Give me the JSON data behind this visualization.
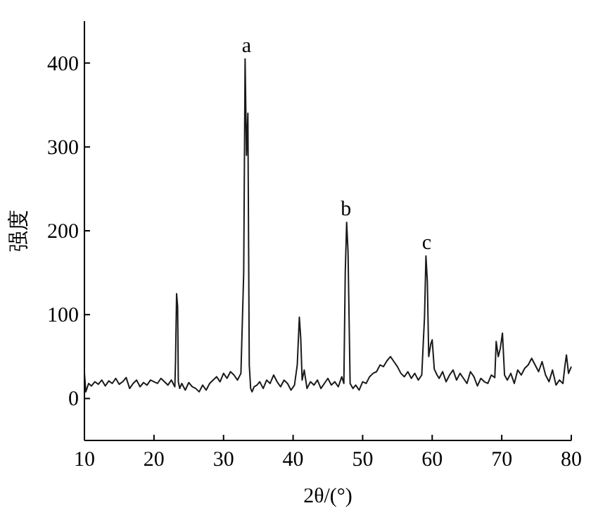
{
  "chart_data": {
    "type": "line",
    "xlabel": "2θ/(°)",
    "ylabel": "强度",
    "x": [
      10,
      10.2,
      10.6,
      11,
      11.5,
      12,
      12.5,
      13,
      13.5,
      14,
      14.5,
      15,
      15.5,
      16,
      16.5,
      17,
      17.5,
      18,
      18.5,
      19,
      19.5,
      20,
      20.5,
      21,
      21.5,
      22,
      22.5,
      23,
      23.1,
      23.25,
      23.4,
      23.5,
      23.7,
      24,
      24.5,
      25,
      25.5,
      26,
      26.5,
      27,
      27.5,
      28,
      28.5,
      29,
      29.5,
      30,
      30.5,
      31,
      31.5,
      32,
      32.5,
      32.9,
      33.1,
      33.3,
      33.5,
      33.7,
      33.9,
      34.1,
      34.4,
      34.8,
      35.2,
      35.7,
      36.2,
      36.7,
      37.2,
      37.7,
      38.2,
      38.7,
      39.2,
      39.7,
      40.2,
      40.6,
      40.9,
      41.1,
      41.3,
      41.6,
      42,
      42.5,
      43,
      43.5,
      44,
      44.5,
      45,
      45.5,
      46,
      46.5,
      47,
      47.3,
      47.5,
      47.7,
      47.9,
      48.2,
      48.6,
      49,
      49.5,
      50,
      50.5,
      51,
      51.5,
      52,
      52.5,
      53,
      53.5,
      54,
      54.5,
      55,
      55.5,
      56,
      56.5,
      57,
      57.5,
      58,
      58.5,
      58.9,
      59.1,
      59.3,
      59.5,
      59.8,
      60,
      60.3,
      60.7,
      61,
      61.5,
      62,
      62.5,
      63,
      63.5,
      64,
      64.5,
      65,
      65.5,
      66,
      66.5,
      67,
      67.5,
      68,
      68.5,
      69,
      69.2,
      69.5,
      69.8,
      70.1,
      70.4,
      70.8,
      71.3,
      71.8,
      72.3,
      72.8,
      73.3,
      73.8,
      74.3,
      74.8,
      75.3,
      75.8,
      76.3,
      76.8,
      77.3,
      77.8,
      78.3,
      78.8,
      79.1,
      79.3,
      79.6,
      80
    ],
    "series": [
      {
        "color": "#1a1a1a",
        "values": [
          30,
          8,
          18,
          15,
          20,
          17,
          22,
          15,
          21,
          18,
          24,
          17,
          20,
          25,
          12,
          18,
          22,
          14,
          19,
          16,
          22,
          20,
          18,
          24,
          20,
          16,
          22,
          14,
          45,
          125,
          110,
          20,
          12,
          18,
          10,
          19,
          14,
          12,
          8,
          16,
          10,
          18,
          22,
          26,
          20,
          30,
          24,
          32,
          28,
          22,
          30,
          150,
          405,
          290,
          340,
          40,
          12,
          8,
          14,
          16,
          20,
          12,
          22,
          18,
          28,
          20,
          14,
          22,
          18,
          10,
          16,
          40,
          97,
          72,
          22,
          34,
          12,
          20,
          16,
          22,
          12,
          18,
          24,
          16,
          20,
          14,
          26,
          18,
          150,
          210,
          175,
          18,
          12,
          16,
          10,
          20,
          18,
          26,
          30,
          32,
          40,
          38,
          45,
          50,
          44,
          38,
          30,
          26,
          32,
          24,
          30,
          22,
          28,
          98,
          170,
          140,
          50,
          65,
          70,
          35,
          28,
          24,
          32,
          20,
          28,
          34,
          22,
          30,
          24,
          18,
          32,
          26,
          15,
          24,
          20,
          18,
          28,
          25,
          68,
          50,
          60,
          78,
          28,
          22,
          30,
          18,
          34,
          28,
          36,
          40,
          48,
          40,
          32,
          44,
          28,
          20,
          34,
          16,
          22,
          18,
          40,
          52,
          30,
          38
        ]
      }
    ],
    "xlim": [
      10,
      80
    ],
    "ylim": [
      -50,
      450
    ],
    "xticks": [
      10,
      20,
      30,
      40,
      50,
      60,
      70,
      80
    ],
    "yticks": [
      0,
      100,
      200,
      300,
      400
    ],
    "grid": false,
    "marker": "none",
    "line_style": "solid",
    "annotations": [
      {
        "text": "a",
        "x": 33.3,
        "y": 405
      },
      {
        "text": "b",
        "x": 47.6,
        "y": 210
      },
      {
        "text": "c",
        "x": 59.2,
        "y": 170
      }
    ]
  }
}
